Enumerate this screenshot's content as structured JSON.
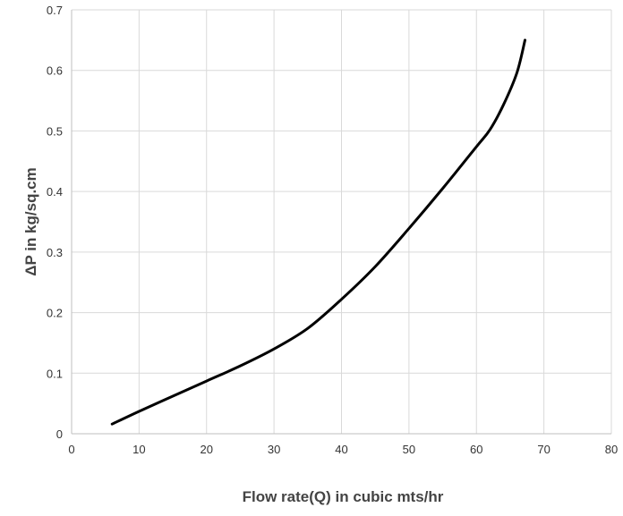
{
  "chart_data": {
    "type": "line",
    "title": "",
    "xlabel": "Flow rate(Q) in cubic mts/hr",
    "ylabel": "ΔP in kg/sq.cm",
    "xlim": [
      0,
      80
    ],
    "ylim": [
      0,
      0.7
    ],
    "x_ticks": [
      "0",
      "10",
      "20",
      "30",
      "40",
      "50",
      "60",
      "70",
      "80"
    ],
    "y_ticks": [
      "0",
      "0.1",
      "0.2",
      "0.3",
      "0.4",
      "0.5",
      "0.6",
      "0.7"
    ],
    "grid": true,
    "legend": "none",
    "line_color": "#000000",
    "series": [
      {
        "x": [
          6,
          10,
          15,
          20,
          25,
          30,
          35,
          40,
          45,
          50,
          55,
          60,
          62,
          64,
          66,
          67.2
        ],
        "y": [
          0.016,
          0.037,
          0.062,
          0.087,
          0.112,
          0.14,
          0.174,
          0.222,
          0.276,
          0.339,
          0.405,
          0.474,
          0.502,
          0.543,
          0.596,
          0.65
        ]
      }
    ]
  }
}
